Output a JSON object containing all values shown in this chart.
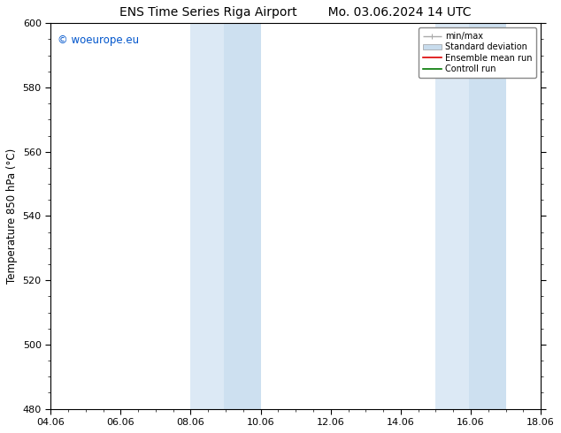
{
  "title_left": "ENS Time Series Riga Airport",
  "title_right": "Mo. 03.06.2024 14 UTC",
  "ylabel": "Temperature 850 hPa (°C)",
  "ylim": [
    480,
    600
  ],
  "yticks": [
    480,
    500,
    520,
    540,
    560,
    580,
    600
  ],
  "xlabel_dates": [
    "04.06",
    "06.06",
    "08.06",
    "10.06",
    "12.06",
    "14.06",
    "16.06",
    "18.06"
  ],
  "x_tick_positions": [
    0,
    2,
    4,
    6,
    8,
    10,
    12,
    14
  ],
  "xmin_days": 0,
  "xmax_days": 14,
  "shaded_regions": [
    {
      "xstart_days": 4.0,
      "xend_days": 4.95,
      "color": "#dce9f5"
    },
    {
      "xstart_days": 4.95,
      "xend_days": 6.0,
      "color": "#cde0f0"
    },
    {
      "xstart_days": 11.0,
      "xend_days": 11.95,
      "color": "#dce9f5"
    },
    {
      "xstart_days": 11.95,
      "xend_days": 13.0,
      "color": "#cde0f0"
    }
  ],
  "legend_entries": [
    {
      "label": "min/max",
      "color": "#aaaaaa",
      "lw": 1.0,
      "style": "minmax"
    },
    {
      "label": "Standard deviation",
      "color": "#c8dced",
      "lw": 6,
      "style": "band"
    },
    {
      "label": "Ensemble mean run",
      "color": "#dd0000",
      "lw": 1.2,
      "style": "line"
    },
    {
      "label": "Controll run",
      "color": "#007700",
      "lw": 1.2,
      "style": "line"
    }
  ],
  "watermark": "© woeurope.eu",
  "watermark_color": "#0055cc",
  "bg_color": "#ffffff",
  "plot_bg_color": "#ffffff",
  "title_fontsize": 10,
  "tick_fontsize": 8,
  "label_fontsize": 8.5
}
